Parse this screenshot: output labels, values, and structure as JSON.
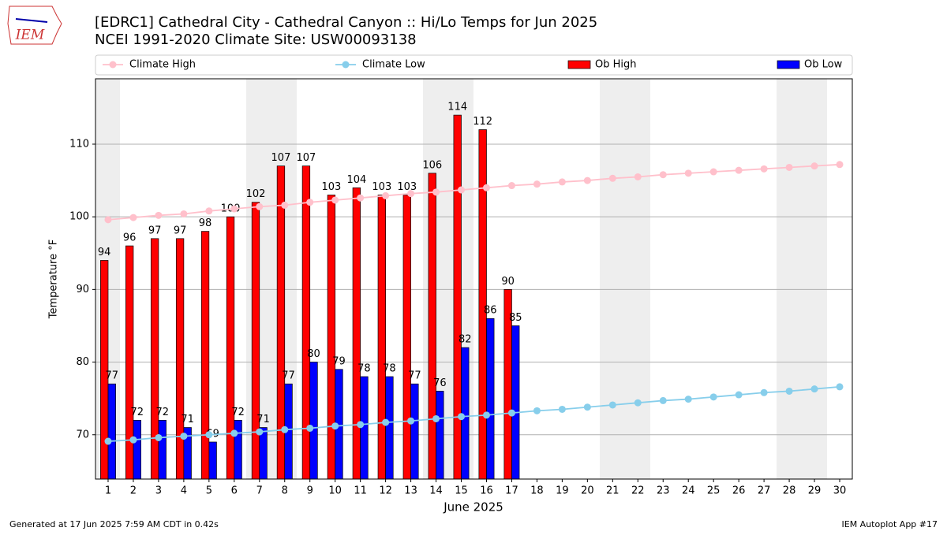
{
  "chart_data": {
    "type": "bar",
    "logo": "IEM",
    "title": "[EDRC1] Cathedral City - Cathedral Canyon :: Hi/Lo Temps for Jun 2025",
    "subtitle": "NCEI 1991-2020 Climate Site: USW00093138",
    "x_label": "June 2025",
    "y_label": "Temperature °F",
    "x": [
      1,
      2,
      3,
      4,
      5,
      6,
      7,
      8,
      9,
      10,
      11,
      12,
      13,
      14,
      15,
      16,
      17,
      18,
      19,
      20,
      21,
      22,
      23,
      24,
      25,
      26,
      27,
      28,
      29,
      30
    ],
    "xlim": [
      0.5,
      30.5
    ],
    "xticks": [
      1,
      2,
      3,
      4,
      5,
      6,
      7,
      8,
      9,
      10,
      11,
      12,
      13,
      14,
      15,
      16,
      17,
      18,
      19,
      20,
      21,
      22,
      23,
      24,
      25,
      26,
      27,
      28,
      29,
      30
    ],
    "ylim": [
      63.9,
      119.0
    ],
    "yticks": [
      70,
      80,
      90,
      100,
      110
    ],
    "grid": "y",
    "legend": "top",
    "series": [
      {
        "name": "Climate High",
        "type": "line",
        "color": "#ffc0cb",
        "values": [
          99.6,
          99.9,
          100.2,
          100.4,
          100.8,
          101.1,
          101.4,
          101.6,
          102.0,
          102.3,
          102.6,
          102.9,
          103.2,
          103.4,
          103.7,
          104.0,
          104.3,
          104.5,
          104.8,
          105.0,
          105.3,
          105.5,
          105.8,
          106.0,
          106.2,
          106.4,
          106.6,
          106.8,
          107.0,
          107.2
        ]
      },
      {
        "name": "Climate Low",
        "type": "line",
        "color": "#87ceeb",
        "values": [
          69.1,
          69.3,
          69.6,
          69.8,
          70.0,
          70.2,
          70.4,
          70.7,
          70.9,
          71.2,
          71.4,
          71.7,
          71.9,
          72.2,
          72.5,
          72.7,
          73.0,
          73.3,
          73.5,
          73.8,
          74.1,
          74.4,
          74.7,
          74.9,
          75.2,
          75.5,
          75.8,
          76.0,
          76.3,
          76.6
        ]
      },
      {
        "name": "Ob High",
        "type": "bar",
        "color": "#ff0000",
        "values": [
          94,
          96,
          97,
          97,
          98,
          100,
          102,
          107,
          107,
          103,
          104,
          103,
          103,
          106,
          114,
          112,
          90,
          null,
          null,
          null,
          null,
          null,
          null,
          null,
          null,
          null,
          null,
          null,
          null,
          null
        ]
      },
      {
        "name": "Ob Low",
        "type": "bar",
        "color": "#0000ff",
        "values": [
          77,
          72,
          72,
          71,
          69,
          72,
          71,
          77,
          80,
          79,
          78,
          78,
          77,
          76,
          82,
          86,
          85,
          null,
          null,
          null,
          null,
          null,
          null,
          null,
          null,
          null,
          null,
          null,
          null,
          null
        ]
      }
    ],
    "footer_left": "Generated at 17 Jun 2025 7:59 AM CDT in 0.42s",
    "footer_right": "IEM Autoplot App #17"
  }
}
